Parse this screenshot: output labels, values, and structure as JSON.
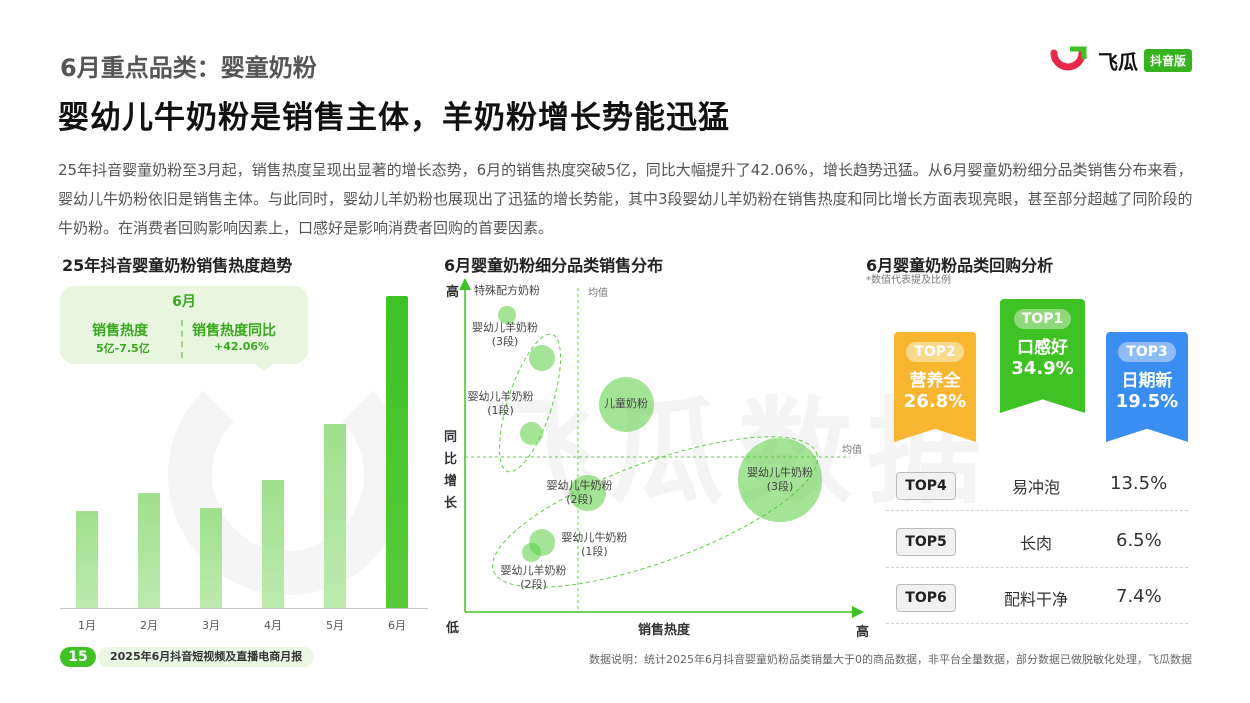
{
  "header": {
    "section": "6月重点品类：婴童奶粉",
    "headline": "婴幼儿牛奶粉是销售主体，羊奶粉增长势能迅猛",
    "intro": "25年抖音婴童奶粉至3月起，销售热度呈现出显著的增长态势，6月的销售热度突破5亿，同比大幅提升了42.06%，增长趋势迅猛。从6月婴童奶粉细分品类销售分布来看，婴幼儿牛奶粉依旧是销售主体。与此同时，婴幼儿羊奶粉也展现出了迅猛的增长势能，其中3段婴幼儿羊奶粉在销售热度和同比增长方面表现亮眼，甚至部分超越了同阶段的牛奶粉。在消费者回购影响因素上，口感好是影响消费者回购的首要因素。",
    "logo_text": "飞瓜",
    "logo_badge": "抖音版"
  },
  "watermark": "飞瓜数据",
  "colors": {
    "accent": "#3ec224",
    "bar_light": "#a8e395",
    "top1": "#3ec224",
    "top2": "#f7b530",
    "top3": "#3a8ef2"
  },
  "left_panel": {
    "title": "25年抖音婴童奶粉销售热度趋势",
    "callout": {
      "month": "6月",
      "k1": "销售热度",
      "v1": "5亿-7.5亿",
      "k2": "销售热度同比",
      "v2": "+42.06%"
    }
  },
  "middle_panel": {
    "title": "6月婴童奶粉细分品类销售分布"
  },
  "right_panel": {
    "title": "6月婴童奶粉品类回购分析",
    "note": "*数值代表提及比例",
    "top3": [
      {
        "rank": "TOP2",
        "name": "营养全",
        "pct": "26.8%"
      },
      {
        "rank": "TOP1",
        "name": "口感好",
        "pct": "34.9%"
      },
      {
        "rank": "TOP3",
        "name": "日期新",
        "pct": "19.5%"
      }
    ],
    "rows": [
      {
        "rank": "TOP4",
        "name": "易冲泡",
        "pct": "13.5%"
      },
      {
        "rank": "TOP5",
        "name": "长肉",
        "pct": "6.5%"
      },
      {
        "rank": "TOP6",
        "name": "配料干净",
        "pct": "7.4%"
      }
    ]
  },
  "chart_data": [
    {
      "type": "bar",
      "title": "25年抖音婴童奶粉销售热度趋势",
      "categories": [
        "1月",
        "2月",
        "3月",
        "4月",
        "5月",
        "6月"
      ],
      "values": [
        31,
        37,
        32,
        41,
        59,
        100
      ],
      "highlight": "6月",
      "grid": false
    },
    {
      "type": "scatter",
      "title": "6月婴童奶粉细分品类销售分布",
      "xlabel": "销售热度",
      "ylabel": "同比增长",
      "x_low": "低",
      "x_high": "高",
      "y_high": "高",
      "ref_label": "均值",
      "points": [
        {
          "label": "特殊配方奶粉",
          "x": 1.2,
          "y": 9.0,
          "size": 1
        },
        {
          "label": "婴幼儿羊奶粉\n(3段)",
          "x": 2.2,
          "y": 7.7,
          "size": 2
        },
        {
          "label": "婴幼儿羊奶粉\n(1段)",
          "x": 1.9,
          "y": 5.4,
          "size": 1.6
        },
        {
          "label": "儿童奶粉",
          "x": 4.6,
          "y": 6.3,
          "size": 5
        },
        {
          "label": "婴幼儿牛奶粉\n(3段)",
          "x": 9.0,
          "y": 4.0,
          "size": 8
        },
        {
          "label": "婴幼儿牛奶粉\n(2段)",
          "x": 3.5,
          "y": 3.6,
          "size": 3
        },
        {
          "label": "婴幼儿牛奶粉\n(1段)",
          "x": 2.2,
          "y": 2.1,
          "size": 2
        },
        {
          "label": "婴幼儿羊奶粉\n(2段)",
          "x": 1.9,
          "y": 1.8,
          "size": 1.1
        }
      ]
    }
  ],
  "footer": {
    "page": "15",
    "report": "2025年6月抖音短视频及直播电商月报",
    "note": "数据说明：统计2025年6月抖音婴童奶粉品类销量大于0的商品数据，非平台全量数据，部分数据已做脱敏化处理，飞瓜数据"
  }
}
